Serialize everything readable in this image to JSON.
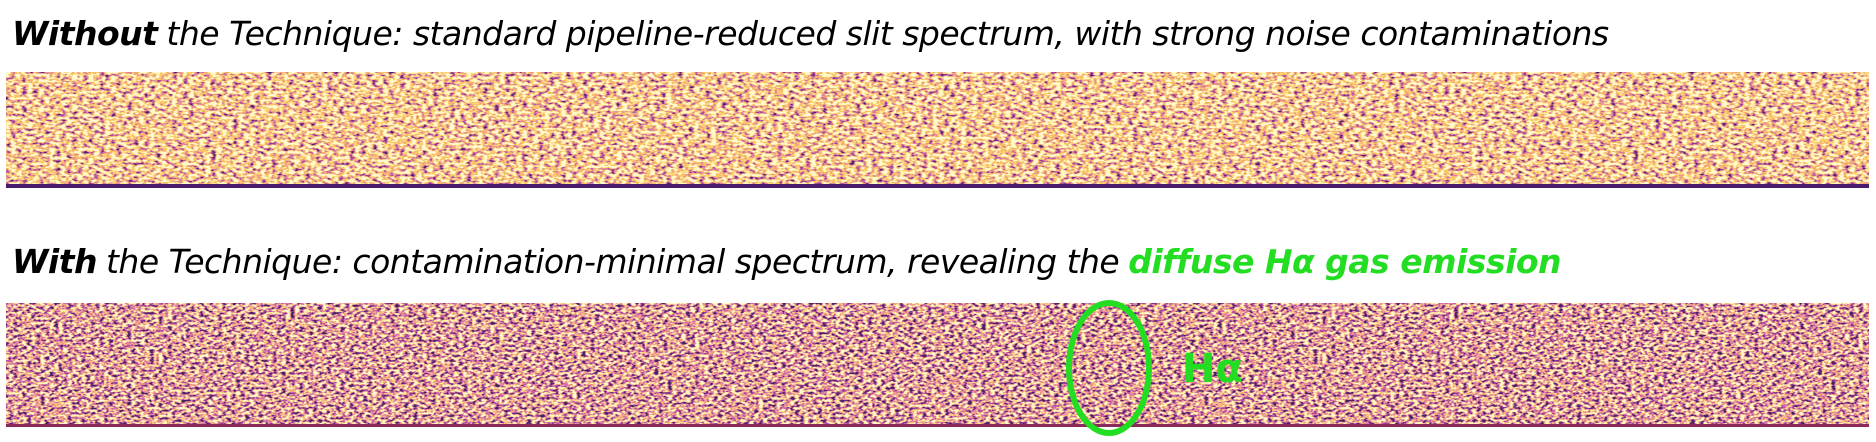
{
  "panels": [
    {
      "lead": "Without",
      "caption": "the Technique: standard pipeline-reduced slit spectrum, with strong noise contaminations"
    },
    {
      "lead": "With",
      "caption": "the Technique: contamination-minimal spectrum, revealing the",
      "highlight": "diffuse Hα gas emission",
      "annotation": "Hα"
    }
  ]
}
